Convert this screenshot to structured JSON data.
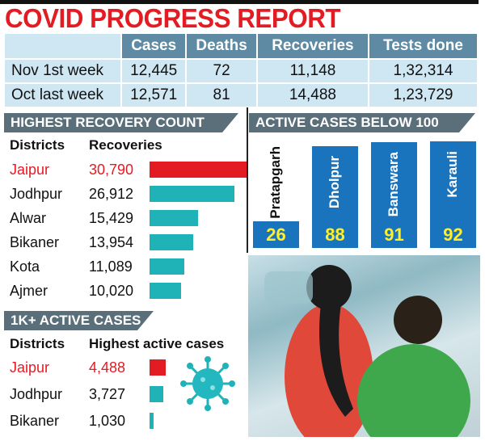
{
  "title": "COVID PROGRESS REPORT",
  "summary": {
    "columns": [
      "Cases",
      "Deaths",
      "Recoveries",
      "Tests done"
    ],
    "rows": [
      {
        "label": "Nov 1st week",
        "values": [
          "12,445",
          "72",
          "11,148",
          "1,32,314"
        ]
      },
      {
        "label": "Oct last week",
        "values": [
          "12,571",
          "81",
          "14,488",
          "1,23,729"
        ]
      }
    ]
  },
  "colors": {
    "title": "#e31b23",
    "highlight": "#e31b23",
    "bar": "#1fb3b8",
    "box": "#1a73bd",
    "box_number": "#ffef29",
    "banner": "#5a6f7a"
  },
  "chart_data": [
    {
      "type": "bar",
      "title": "HIGHEST RECOVERY COUNT",
      "xlabel": "Districts",
      "ylabel": "Recoveries",
      "categories": [
        "Jaipur",
        "Jodhpur",
        "Alwar",
        "Bikaner",
        "Kota",
        "Ajmer"
      ],
      "labels": [
        "30,790",
        "26,912",
        "15,429",
        "13,954",
        "11,089",
        "10,020"
      ],
      "values": [
        30790,
        26912,
        15429,
        13954,
        11089,
        10020
      ],
      "orientation": "horizontal"
    },
    {
      "type": "bar",
      "title": "1K+ ACTIVE CASES",
      "xlabel": "Districts",
      "ylabel": "Highest active cases",
      "categories": [
        "Jaipur",
        "Jodhpur",
        "Bikaner"
      ],
      "labels": [
        "4,488",
        "3,727",
        "1,030"
      ],
      "values": [
        4488,
        3727,
        1030
      ],
      "orientation": "horizontal"
    },
    {
      "type": "bar",
      "title": "ACTIVE CASES BELOW 100",
      "categories": [
        "Pratapgarh",
        "Dholpur",
        "Banswara",
        "Karauli"
      ],
      "values": [
        26,
        88,
        91,
        92
      ]
    }
  ]
}
